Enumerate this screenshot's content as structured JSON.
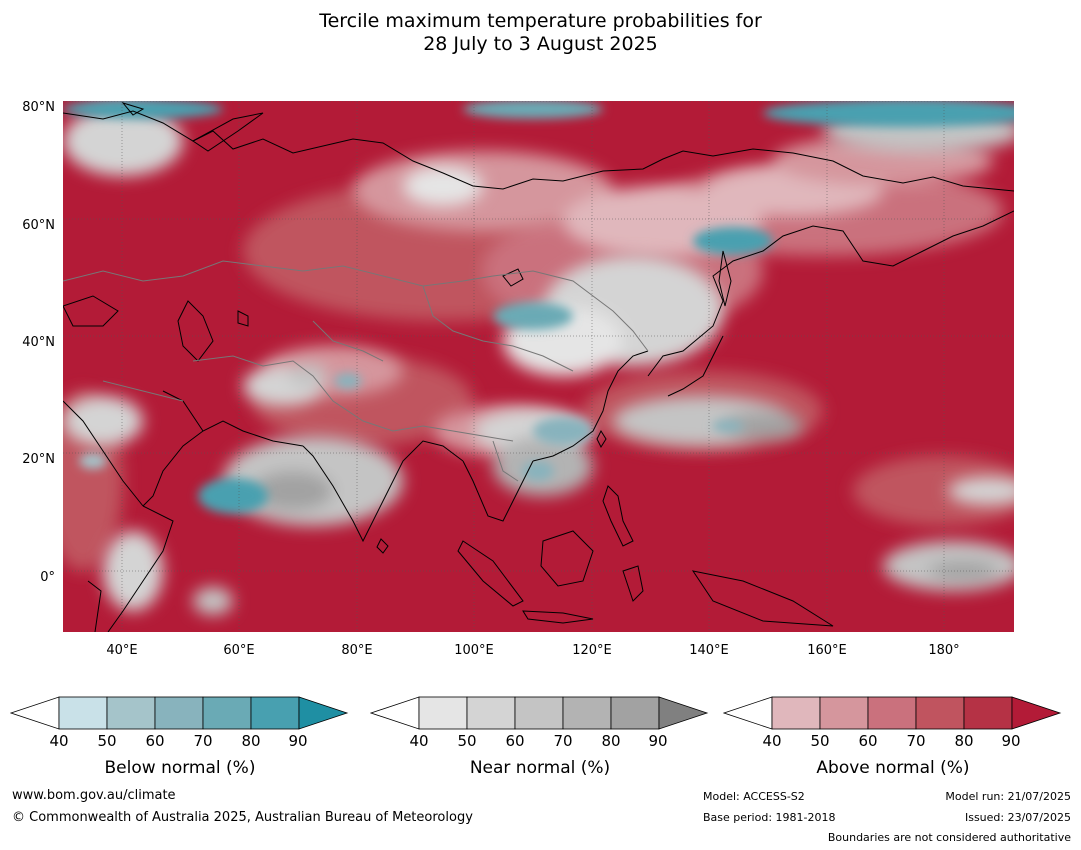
{
  "title": {
    "line1": "Tercile maximum temperature probabilities for",
    "line2": "28 July to 3 August 2025"
  },
  "map": {
    "lat_labels": [
      "80°N",
      "60°N",
      "40°N",
      "20°N",
      "0°"
    ],
    "lon_labels": [
      "40°E",
      "60°E",
      "80°E",
      "100°E",
      "120°E",
      "140°E",
      "160°E",
      "180°"
    ],
    "colors": {
      "above_dominant": "#b31b37",
      "ocean_above": "#b31b37"
    }
  },
  "legend": {
    "below": {
      "label": "Below normal (%)",
      "ticks": [
        "40",
        "50",
        "60",
        "70",
        "80",
        "90"
      ],
      "colors": [
        "#ffffff",
        "#c9e1e8",
        "#a5c4ca",
        "#88b3bd",
        "#6aaab5",
        "#48a0b0",
        "#1f8fa3"
      ]
    },
    "near": {
      "label": "Near normal (%)",
      "ticks": [
        "40",
        "50",
        "60",
        "70",
        "80",
        "90"
      ],
      "colors": [
        "#ffffff",
        "#e5e5e5",
        "#d4d4d4",
        "#c4c4c4",
        "#b3b3b3",
        "#a2a2a2",
        "#808080"
      ]
    },
    "above": {
      "label": "Above normal (%)",
      "ticks": [
        "40",
        "50",
        "60",
        "70",
        "80",
        "90"
      ],
      "colors": [
        "#ffffff",
        "#e0b7bc",
        "#d5969d",
        "#ca717d",
        "#c0545f",
        "#b53245",
        "#b31b37"
      ]
    }
  },
  "footer": {
    "website": "www.bom.gov.au/climate",
    "copyright": "© Commonwealth of Australia 2025, Australian Bureau of Meteorology",
    "model": "Model: ACCESS-S2",
    "base_period": "Base period: 1981-2018",
    "model_run": "Model run: 21/07/2025",
    "issued": "Issued: 23/07/2025",
    "disclaimer": "Boundaries are not considered authoritative"
  }
}
